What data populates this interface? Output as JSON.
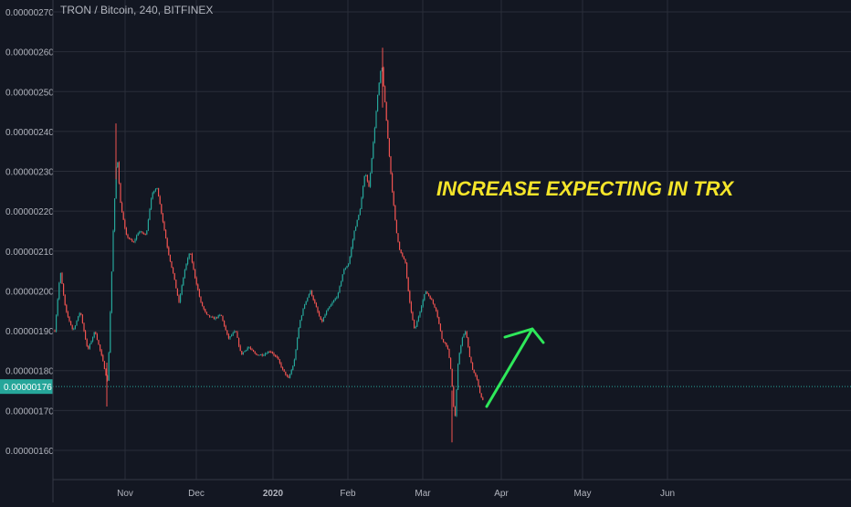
{
  "header": {
    "symbol_title": "TRON / Bitcoin, 240, BITFINEX"
  },
  "annotation": {
    "text": "INCREASE EXPECTING IN TRX",
    "color": "#f5e52a",
    "arrow_color": "#2ee85a"
  },
  "colors": {
    "background": "#131722",
    "grid": "#2a2e39",
    "axis_text": "#b2b5be",
    "up": "#26a69a",
    "down": "#ef5350",
    "price_line": "#26a69a"
  },
  "chart_data": {
    "type": "candlestick",
    "title": "TRON / Bitcoin, 240, BITFINEX",
    "xlabel": "",
    "ylabel": "",
    "ylim": [
      1.55e-06,
      2.72e-06
    ],
    "x_ticks": [
      "Nov",
      "Dec",
      "2020",
      "Feb",
      "Mar",
      "Apr",
      "May",
      "Jun"
    ],
    "y_ticks": [
      "0.00000160",
      "0.00000170",
      "0.00000180",
      "0.00000190",
      "0.00000200",
      "0.00000210",
      "0.00000220",
      "0.00000230",
      "0.00000240",
      "0.00000250",
      "0.00000260",
      "0.00000270"
    ],
    "last_price": "0.00000176",
    "grid": true,
    "series_overview": [
      {
        "period": "Oct (late)",
        "approx_close": 1.95e-06
      },
      {
        "period": "Nov start",
        "approx_close": 2.32e-06
      },
      {
        "period": "Nov mid",
        "approx_close": 2.18e-06
      },
      {
        "period": "Nov end",
        "approx_close": 1.92e-06
      },
      {
        "period": "Dec",
        "approx_close": 1.9e-06
      },
      {
        "period": "2020 start",
        "approx_close": 1.78e-06
      },
      {
        "period": "Jan mid",
        "approx_close": 1.98e-06
      },
      {
        "period": "Feb start",
        "approx_close": 2.28e-06
      },
      {
        "period": "Feb peak",
        "approx_high": 2.61e-06
      },
      {
        "period": "Feb end",
        "approx_close": 2.03e-06
      },
      {
        "period": "Mar mid",
        "approx_low": 1.62e-06
      },
      {
        "period": "Mar end",
        "approx_close": 1.71e-06
      }
    ]
  }
}
